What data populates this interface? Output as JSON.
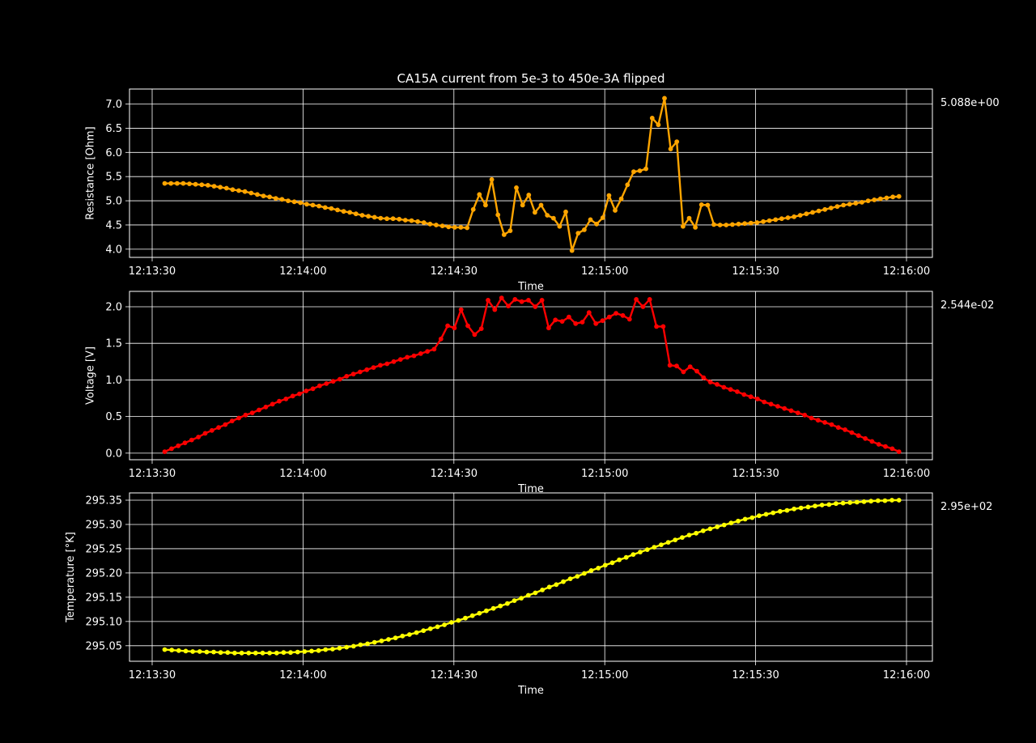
{
  "chart_data": {
    "title": "CA15A current from 5e-3 to 450e-3A flipped",
    "type": "line",
    "x_tick_labels": [
      "12:13:30",
      "12:14:00",
      "12:14:30",
      "12:15:00",
      "12:15:30",
      "12:16:00"
    ],
    "x_tick_seconds": [
      0,
      30,
      60,
      90,
      120,
      150
    ],
    "grid": true,
    "panels": [
      {
        "name": "resistance",
        "xlabel": "Time",
        "ylabel": "Resistance [Ohm]",
        "corner_value": "5.088e+00",
        "color": "#FFA500",
        "ylim": [
          3.83,
          7.31
        ],
        "yticks": [
          4.0,
          4.5,
          5.0,
          5.5,
          6.0,
          6.5,
          7.0
        ],
        "ytick_labels": [
          "4.0",
          "4.5",
          "5.0",
          "5.5",
          "6.0",
          "6.5",
          "7.0"
        ],
        "series": [
          {
            "values": [
              5.36,
              5.36,
              5.36,
              5.36,
              5.35,
              5.34,
              5.33,
              5.32,
              5.3,
              5.28,
              5.26,
              5.23,
              5.21,
              5.19,
              5.16,
              5.13,
              5.1,
              5.08,
              5.05,
              5.03,
              5.0,
              4.98,
              4.96,
              4.93,
              4.91,
              4.89,
              4.86,
              4.84,
              4.81,
              4.78,
              4.76,
              4.73,
              4.7,
              4.68,
              4.66,
              4.64,
              4.63,
              4.63,
              4.62,
              4.6,
              4.59,
              4.57,
              4.55,
              4.52,
              4.5,
              4.48,
              4.46,
              4.45,
              4.45,
              4.44,
              4.82,
              5.13,
              4.91,
              5.44,
              4.71,
              4.3,
              4.38,
              5.27,
              4.91,
              5.12,
              4.76,
              4.91,
              4.7,
              4.64,
              4.47,
              4.77,
              3.97,
              4.33,
              4.4,
              4.61,
              4.52,
              4.65,
              5.11,
              4.8,
              5.04,
              5.33,
              5.6,
              5.62,
              5.66,
              6.71,
              6.57,
              7.12,
              6.07,
              6.22,
              4.47,
              4.64,
              4.45,
              4.92,
              4.91,
              4.51,
              4.5,
              4.5,
              4.51,
              4.52,
              4.53,
              4.54,
              4.55,
              4.57,
              4.59,
              4.61,
              4.63,
              4.65,
              4.67,
              4.7,
              4.73,
              4.76,
              4.79,
              4.82,
              4.85,
              4.88,
              4.91,
              4.93,
              4.95,
              4.97,
              5.0,
              5.02,
              5.04,
              5.06,
              5.08,
              5.09
            ]
          }
        ]
      },
      {
        "name": "voltage",
        "xlabel": "Time",
        "ylabel": "Voltage [V]",
        "corner_value": "2.544e-02",
        "color": "#FF0000",
        "ylim": [
          -0.09,
          2.21
        ],
        "yticks": [
          0.0,
          0.5,
          1.0,
          1.5,
          2.0
        ],
        "ytick_labels": [
          "0.0",
          "0.5",
          "1.0",
          "1.5",
          "2.0"
        ],
        "series": [
          {
            "values": [
              0.02,
              0.06,
              0.1,
              0.14,
              0.18,
              0.22,
              0.27,
              0.31,
              0.35,
              0.39,
              0.44,
              0.48,
              0.52,
              0.55,
              0.59,
              0.63,
              0.67,
              0.71,
              0.74,
              0.78,
              0.81,
              0.85,
              0.88,
              0.92,
              0.95,
              0.98,
              1.01,
              1.05,
              1.08,
              1.11,
              1.14,
              1.17,
              1.2,
              1.22,
              1.25,
              1.28,
              1.31,
              1.33,
              1.36,
              1.39,
              1.42,
              1.56,
              1.74,
              1.71,
              1.96,
              1.74,
              1.62,
              1.7,
              2.09,
              1.96,
              2.12,
              2.01,
              2.1,
              2.07,
              2.09,
              2.0,
              2.09,
              1.71,
              1.82,
              1.8,
              1.86,
              1.77,
              1.79,
              1.92,
              1.77,
              1.81,
              1.86,
              1.91,
              1.88,
              1.83,
              2.1,
              2.0,
              2.1,
              1.73,
              1.73,
              1.2,
              1.19,
              1.11,
              1.18,
              1.12,
              1.03,
              0.97,
              0.94,
              0.9,
              0.87,
              0.84,
              0.8,
              0.77,
              0.74,
              0.7,
              0.67,
              0.64,
              0.61,
              0.58,
              0.55,
              0.52,
              0.48,
              0.45,
              0.42,
              0.39,
              0.35,
              0.32,
              0.28,
              0.24,
              0.2,
              0.16,
              0.12,
              0.09,
              0.06,
              0.02
            ]
          }
        ]
      },
      {
        "name": "temperature",
        "xlabel": "Time",
        "ylabel": "Temperature [°K]",
        "corner_value": "2.95e+02",
        "color": "#FFFF00",
        "ylim": [
          295.018,
          295.365
        ],
        "yticks": [
          295.05,
          295.1,
          295.15,
          295.2,
          295.25,
          295.3,
          295.35
        ],
        "ytick_labels": [
          "295.05",
          "295.10",
          "295.15",
          "295.20",
          "295.25",
          "295.30",
          "295.35"
        ],
        "series": [
          {
            "values": [
              295.042,
              295.041,
              295.04,
              295.039,
              295.038,
              295.038,
              295.037,
              295.037,
              295.036,
              295.036,
              295.035,
              295.035,
              295.035,
              295.035,
              295.035,
              295.035,
              295.035,
              295.036,
              295.036,
              295.037,
              295.038,
              295.039,
              295.04,
              295.042,
              295.043,
              295.045,
              295.047,
              295.049,
              295.052,
              295.054,
              295.057,
              295.06,
              295.063,
              295.066,
              295.07,
              295.073,
              295.077,
              295.081,
              295.085,
              295.089,
              295.093,
              295.098,
              295.102,
              295.107,
              295.112,
              295.117,
              295.122,
              295.127,
              295.132,
              295.137,
              295.143,
              295.148,
              295.154,
              295.159,
              295.165,
              295.171,
              295.176,
              295.182,
              295.188,
              295.193,
              295.199,
              295.205,
              295.21,
              295.216,
              295.221,
              295.227,
              295.232,
              295.238,
              295.243,
              295.248,
              295.253,
              295.258,
              295.263,
              295.268,
              295.273,
              295.278,
              295.282,
              295.287,
              295.291,
              295.295,
              295.299,
              295.303,
              295.307,
              295.311,
              295.314,
              295.318,
              295.321,
              295.324,
              295.327,
              295.329,
              295.332,
              295.334,
              295.336,
              295.338,
              295.34,
              295.341,
              295.343,
              295.344,
              295.345,
              295.346,
              295.347,
              295.348,
              295.349,
              295.349,
              295.35,
              295.35
            ]
          }
        ]
      }
    ]
  }
}
